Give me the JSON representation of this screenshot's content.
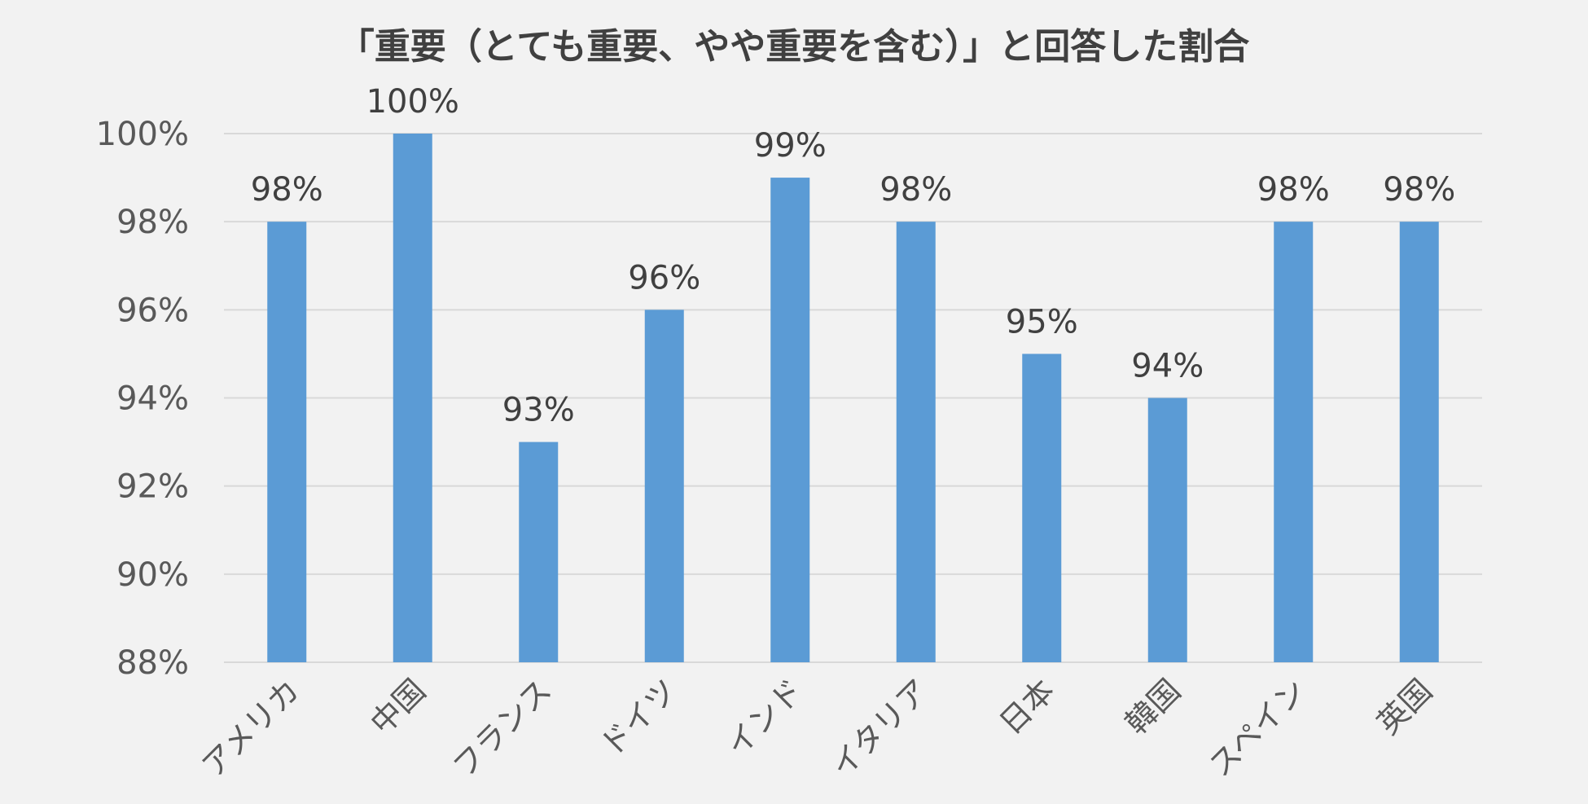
{
  "chart_data": {
    "type": "bar",
    "title": "「重要（とても重要、やや重要を含む）」と回答した割合",
    "categories": [
      "アメリカ",
      "中国",
      "フランス",
      "ドイツ",
      "インド",
      "イタリア",
      "日本",
      "韓国",
      "スペイン",
      "英国"
    ],
    "values": [
      98,
      100,
      93,
      96,
      99,
      98,
      95,
      94,
      98,
      98
    ],
    "value_labels": [
      "98%",
      "100%",
      "93%",
      "96%",
      "99%",
      "98%",
      "95%",
      "94%",
      "98%",
      "98%"
    ],
    "ylim": [
      88,
      100
    ],
    "yticks": [
      88,
      90,
      92,
      94,
      96,
      98,
      100
    ],
    "ytick_labels": [
      "88%",
      "90%",
      "92%",
      "94%",
      "96%",
      "98%",
      "100%"
    ],
    "xlabel": "",
    "ylabel": "",
    "grid": true,
    "legend": "none",
    "colors": {
      "bar": "#5b9bd5",
      "grid": "#d9d9d9",
      "background": "#f2f2f2"
    }
  }
}
